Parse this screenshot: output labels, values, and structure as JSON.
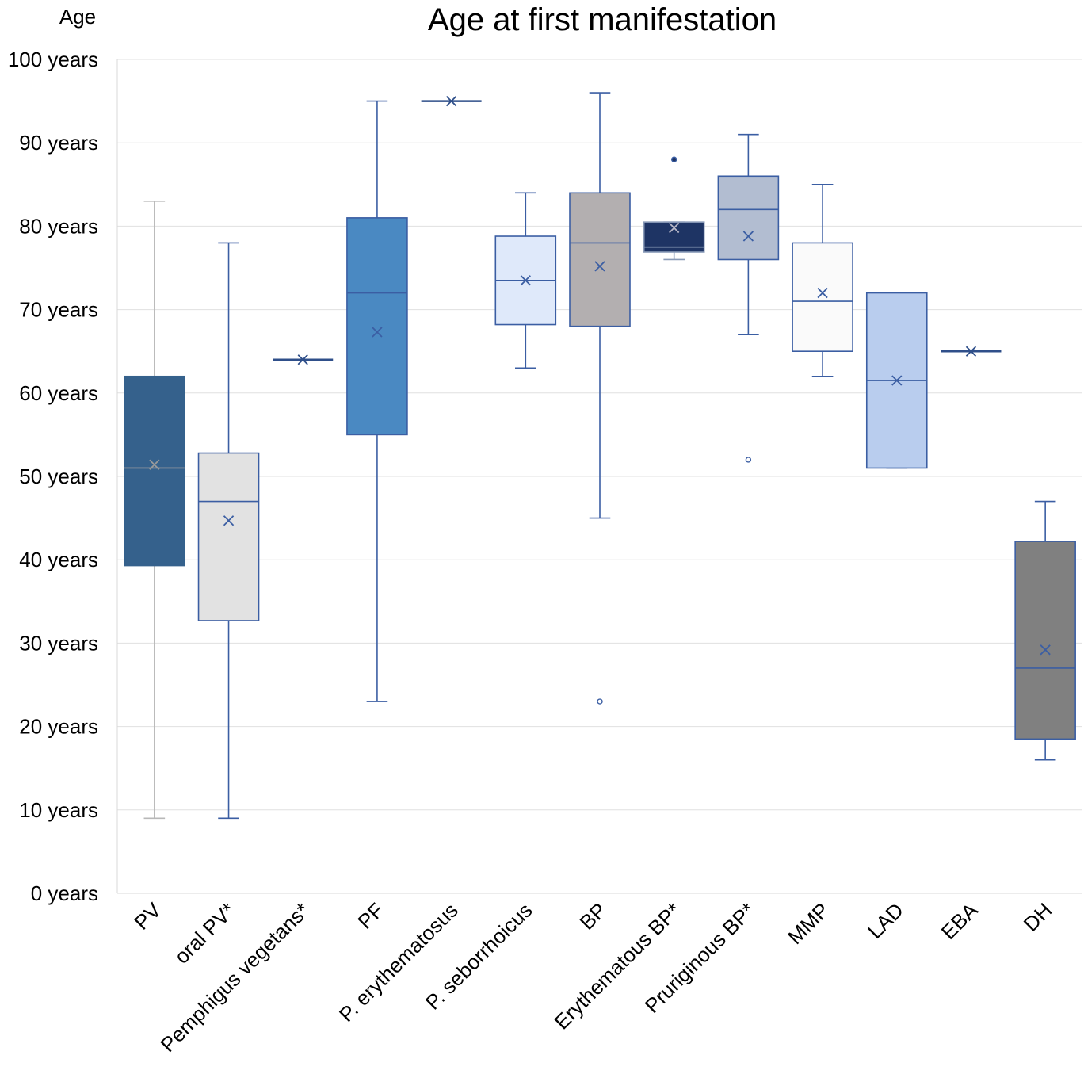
{
  "chart_data": {
    "type": "boxplot",
    "title": "Age at first manifestation",
    "ylabel": "Age",
    "xlabel": "",
    "ylim": [
      0,
      100
    ],
    "grid": true,
    "yticks": [
      {
        "value": 0,
        "label": "0 years"
      },
      {
        "value": 10,
        "label": "10 years"
      },
      {
        "value": 20,
        "label": "20 years"
      },
      {
        "value": 30,
        "label": "30 years"
      },
      {
        "value": 40,
        "label": "40 years"
      },
      {
        "value": 50,
        "label": "50 years"
      },
      {
        "value": 60,
        "label": "60 years"
      },
      {
        "value": 70,
        "label": "70 years"
      },
      {
        "value": 80,
        "label": "80 years"
      },
      {
        "value": 90,
        "label": "90 years"
      },
      {
        "value": 100,
        "label": "100 years"
      }
    ],
    "categories": [
      "PV",
      "oral PV*",
      "Pemphigus vegetans*",
      "PF",
      "P. erythematosus",
      "P. seborrhoicus",
      "BP",
      "Erythematous BP*",
      "Pruriginous BP*",
      "MMP",
      "LAD",
      "EBA",
      "DH"
    ],
    "boxes": [
      {
        "name": "PV",
        "min": 9,
        "q1": 39.3,
        "median": 51,
        "q3": 62,
        "max": 83,
        "mean": 51.4,
        "outliers": [],
        "fill": "#35618c",
        "stroke": "#35618c",
        "whisker": "#b8b8b8",
        "mean_color": "#9a9a9a",
        "median_color": "#a0a0a0"
      },
      {
        "name": "oral PV*",
        "min": 9,
        "q1": 32.7,
        "median": 47,
        "q3": 52.8,
        "max": 78,
        "mean": 44.7,
        "outliers": [],
        "fill": "#e2e2e2",
        "stroke": "#3b5ea3",
        "whisker": "#3b5ea3",
        "mean_color": "#3b5ea3",
        "median_color": "#3b5ea3"
      },
      {
        "name": "Pemphigus vegetans*",
        "min": 64,
        "q1": 64,
        "median": 64,
        "q3": 64,
        "max": 64,
        "mean": 64,
        "outliers": [],
        "fill": "#2f4f8a",
        "stroke": "#2f4f8a",
        "whisker": "#2f4f8a",
        "mean_color": "#2f4f8a",
        "median_color": "#2f4f8a"
      },
      {
        "name": "PF",
        "min": 23,
        "q1": 55,
        "median": 72,
        "q3": 81,
        "max": 95,
        "mean": 67.3,
        "outliers": [],
        "fill": "#4a89c2",
        "stroke": "#3b5ea3",
        "whisker": "#3b5ea3",
        "mean_color": "#3b5ea3",
        "median_color": "#3b5ea3"
      },
      {
        "name": "P. erythematosus",
        "min": 95,
        "q1": 95,
        "median": 95,
        "q3": 95,
        "max": 95,
        "mean": 95,
        "outliers": [],
        "fill": "#2f4f8a",
        "stroke": "#2f4f8a",
        "whisker": "#2f4f8a",
        "mean_color": "#2f4f8a",
        "median_color": "#2f4f8a"
      },
      {
        "name": "P. seborrhoicus",
        "min": 63,
        "q1": 68.2,
        "median": 73.5,
        "q3": 78.8,
        "max": 84,
        "mean": 73.5,
        "outliers": [],
        "fill": "#dfe9fa",
        "stroke": "#3b5ea3",
        "whisker": "#3b5ea3",
        "mean_color": "#3b5ea3",
        "median_color": "#3b5ea3"
      },
      {
        "name": "BP",
        "min": 45,
        "q1": 68,
        "median": 78,
        "q3": 84,
        "max": 96,
        "mean": 75.2,
        "outliers": [
          23
        ],
        "fill": "#b3afb0",
        "stroke": "#3b5ea3",
        "whisker": "#3b5ea3",
        "mean_color": "#3b5ea3",
        "median_color": "#3b5ea3"
      },
      {
        "name": "Erythematous BP*",
        "min": 76,
        "q1": 76.9,
        "median": 77.5,
        "q3": 80.5,
        "max": 80.5,
        "mean": 79.8,
        "outliers": [
          88
        ],
        "fill": "#1e3464",
        "stroke": "#8a9bb8",
        "whisker": "#8a9bb8",
        "mean_color": "#b8b8c8",
        "median_color": "#8a9bb8"
      },
      {
        "name": "Pruriginous BP*",
        "min": 67,
        "q1": 76,
        "median": 82,
        "q3": 86,
        "max": 91,
        "mean": 78.8,
        "outliers": [
          52
        ],
        "fill": "#b2bdd1",
        "stroke": "#3b5ea3",
        "whisker": "#3b5ea3",
        "mean_color": "#3b5ea3",
        "median_color": "#3b5ea3"
      },
      {
        "name": "MMP",
        "min": 62,
        "q1": 65,
        "median": 71,
        "q3": 78,
        "max": 85,
        "mean": 72,
        "outliers": [],
        "fill": "#fafafa",
        "stroke": "#3b5ea3",
        "whisker": "#3b5ea3",
        "mean_color": "#3b5ea3",
        "median_color": "#3b5ea3"
      },
      {
        "name": "LAD",
        "min": 51,
        "q1": 51,
        "median": 61.5,
        "q3": 72,
        "max": 72,
        "mean": 61.5,
        "outliers": [],
        "fill": "#b9cdee",
        "stroke": "#3b5ea3",
        "whisker": "#3b5ea3",
        "mean_color": "#3b5ea3",
        "median_color": "#3b5ea3"
      },
      {
        "name": "EBA",
        "min": 65,
        "q1": 65,
        "median": 65,
        "q3": 65,
        "max": 65,
        "mean": 65,
        "outliers": [],
        "fill": "#2f4f8a",
        "stroke": "#2f4f8a",
        "whisker": "#2f4f8a",
        "mean_color": "#2f4f8a",
        "median_color": "#2f4f8a"
      },
      {
        "name": "DH",
        "min": 16,
        "q1": 18.5,
        "median": 27,
        "q3": 42.2,
        "max": 47,
        "mean": 29.2,
        "outliers": [],
        "fill": "#808080",
        "stroke": "#3b5ea3",
        "whisker": "#3b5ea3",
        "mean_color": "#3b5ea3",
        "median_color": "#3b5ea3"
      }
    ]
  }
}
